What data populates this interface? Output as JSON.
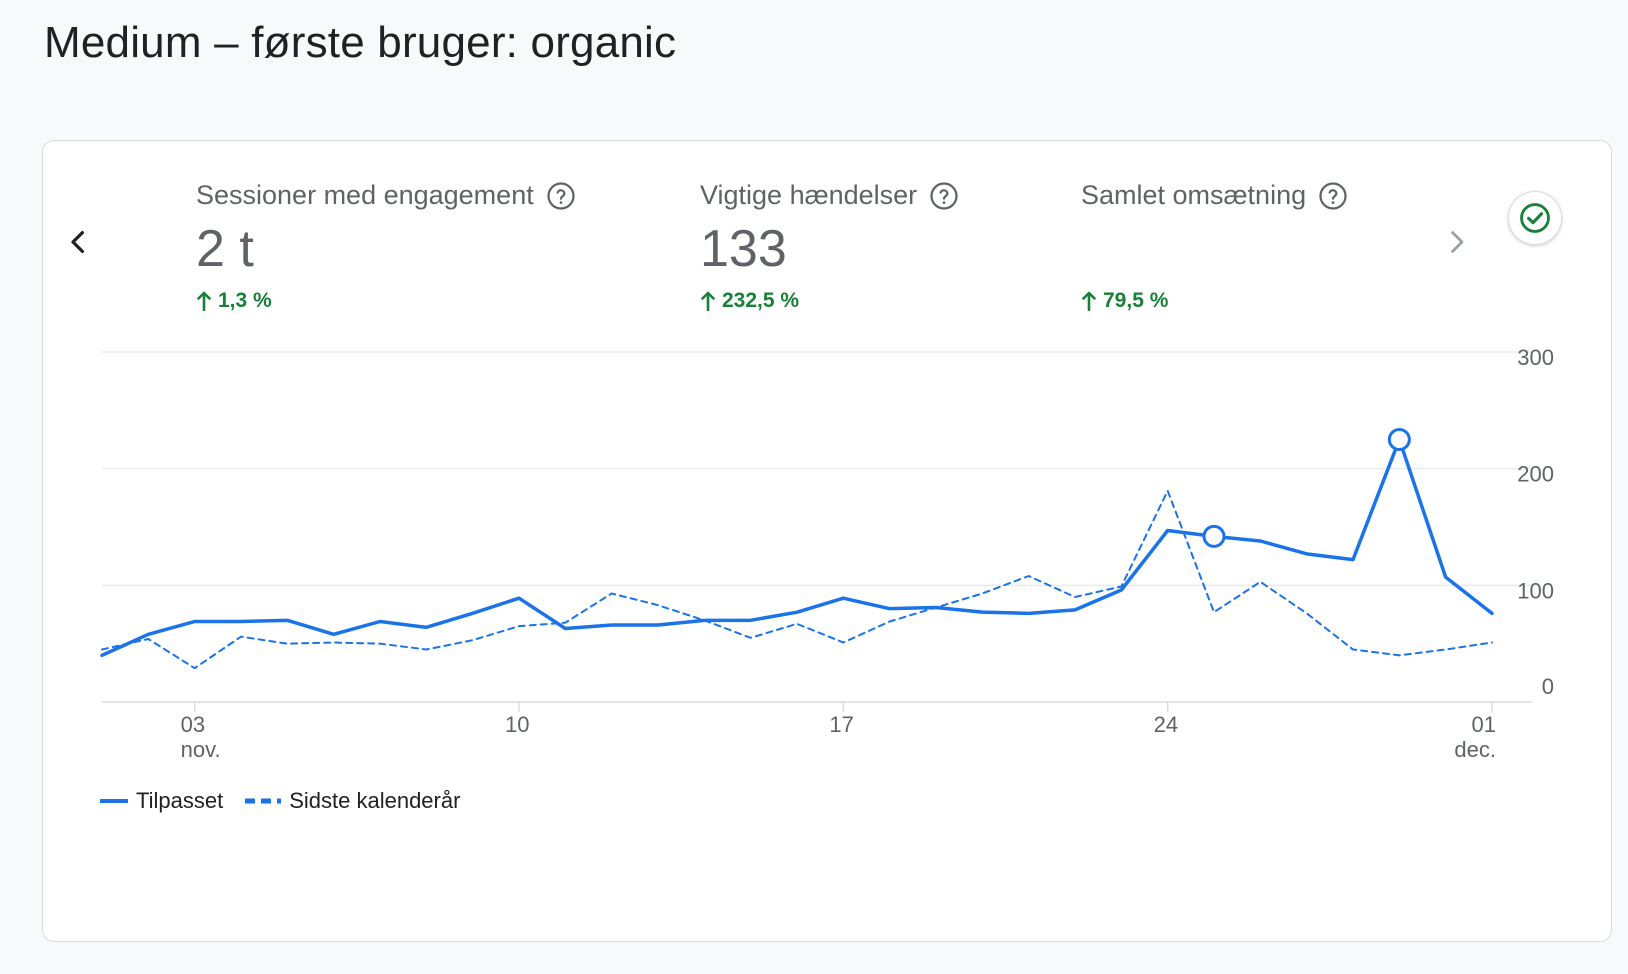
{
  "page": {
    "title": "Medium – første bruger: organic"
  },
  "metrics": [
    {
      "label": "Sessioner med engagement",
      "value": "2 t",
      "change": "1,3 %"
    },
    {
      "label": "Vigtige hændelser",
      "value": "133",
      "change": "232,5 %"
    },
    {
      "label": "Samlet omsætning",
      "value": "",
      "change": "79,5 %"
    }
  ],
  "colors": {
    "primary": "#1a73e8",
    "positive": "#188038",
    "grid": "#e8eaed",
    "muted": "#5f6368"
  },
  "icons": {
    "prev": "chevron-left-icon",
    "next": "chevron-right-icon",
    "help": "help-circle-icon",
    "check": "check-circle-icon",
    "up": "arrow-up-icon"
  },
  "chart_data": {
    "type": "line",
    "x": [
      1,
      2,
      3,
      4,
      5,
      6,
      7,
      8,
      9,
      10,
      11,
      12,
      13,
      14,
      15,
      16,
      17,
      18,
      19,
      20,
      21,
      22,
      23,
      24,
      25,
      26,
      27,
      28,
      29,
      30,
      31
    ],
    "x_ticks": [
      {
        "x": 3,
        "label": "03",
        "sub": "nov."
      },
      {
        "x": 10,
        "label": "10",
        "sub": ""
      },
      {
        "x": 17,
        "label": "17",
        "sub": ""
      },
      {
        "x": 24,
        "label": "24",
        "sub": ""
      },
      {
        "x": 31,
        "label": "01",
        "sub": "dec."
      }
    ],
    "ylim": [
      0,
      300
    ],
    "y_ticks": [
      0,
      100,
      200,
      300
    ],
    "grid": true,
    "legend_position": "bottom-left",
    "series": [
      {
        "name": "Tilpasset",
        "style": "solid",
        "values": [
          40,
          58,
          69,
          69,
          70,
          58,
          69,
          64,
          76,
          89,
          63,
          66,
          66,
          70,
          70,
          77,
          89,
          80,
          81,
          77,
          76,
          79,
          96,
          147,
          142,
          138,
          127,
          122,
          225,
          107,
          76
        ],
        "markers": [
          25,
          29
        ]
      },
      {
        "name": "Sidste kalenderår",
        "style": "dashed",
        "values": [
          45,
          54,
          29,
          56,
          50,
          51,
          50,
          45,
          53,
          65,
          68,
          93,
          83,
          70,
          55,
          67,
          51,
          69,
          81,
          93,
          108,
          90,
          99,
          181,
          77,
          103,
          76,
          45,
          40,
          45,
          51
        ]
      }
    ]
  }
}
